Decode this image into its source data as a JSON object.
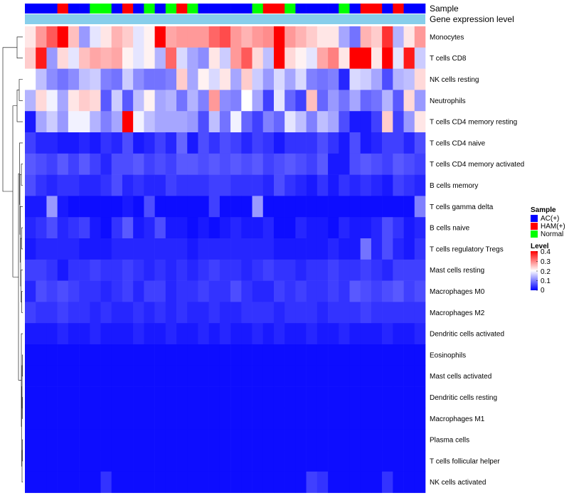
{
  "chart_data": {
    "type": "heatmap",
    "title": "",
    "annotation_tracks": [
      "Sample",
      "Gene expression level"
    ],
    "annotation_track_color": "#87ceeb",
    "n_samples": 37,
    "sample_groups": [
      "AC(+)",
      "AC(+)",
      "AC(+)",
      "HAM(+)",
      "AC(+)",
      "AC(+)",
      "Normal",
      "Normal",
      "AC(+)",
      "HAM(+)",
      "AC(+)",
      "Normal",
      "AC(+)",
      "Normal",
      "HAM(+)",
      "Normal",
      "AC(+)",
      "AC(+)",
      "AC(+)",
      "AC(+)",
      "AC(+)",
      "Normal",
      "HAM(+)",
      "HAM(+)",
      "Normal",
      "AC(+)",
      "AC(+)",
      "AC(+)",
      "AC(+)",
      "Normal",
      "AC(+)",
      "HAM(+)",
      "HAM(+)",
      "AC(+)",
      "HAM(+)",
      "AC(+)",
      "AC(+)"
    ],
    "rows": [
      "Monocytes",
      "T cells CD8",
      "NK cells resting",
      "Neutrophils",
      "T cells CD4 memory resting",
      "T cells CD4 naive",
      "T cells CD4 memory activated",
      "B cells memory",
      "T cells gamma delta",
      "B cells naive",
      "T cells regulatory  Tregs",
      "Mast cells resting",
      "Macrophages M0",
      "Macrophages M2",
      "Dendritic cells activated",
      "Eosinophils",
      "Mast cells activated",
      "Dendritic cells resting",
      "Macrophages M1",
      "Plasma cells",
      "T cells follicular helper",
      "NK cells activated"
    ],
    "values": [
      [
        0.22,
        0.28,
        0.33,
        0.4,
        0.25,
        0.12,
        0.18,
        0.22,
        0.26,
        0.24,
        0.18,
        0.21,
        0.4,
        0.27,
        0.28,
        0.28,
        0.28,
        0.32,
        0.34,
        0.28,
        0.26,
        0.28,
        0.29,
        0.4,
        0.28,
        0.26,
        0.24,
        0.22,
        0.22,
        0.13,
        0.09,
        0.26,
        0.24,
        0.36,
        0.14,
        0.22,
        0.28
      ],
      [
        0.24,
        0.38,
        0.12,
        0.23,
        0.18,
        0.25,
        0.27,
        0.26,
        0.27,
        0.21,
        0.18,
        0.21,
        0.14,
        0.32,
        0.17,
        0.13,
        0.11,
        0.22,
        0.16,
        0.28,
        0.33,
        0.23,
        0.15,
        0.4,
        0.23,
        0.21,
        0.18,
        0.27,
        0.3,
        0.22,
        0.4,
        0.4,
        0.22,
        0.4,
        0.18,
        0.38,
        0.16
      ],
      [
        0.2,
        0.15,
        0.11,
        0.09,
        0.11,
        0.15,
        0.16,
        0.1,
        0.09,
        0.16,
        0.11,
        0.09,
        0.09,
        0.1,
        0.24,
        0.13,
        0.21,
        0.17,
        0.22,
        0.13,
        0.24,
        0.16,
        0.12,
        0.17,
        0.13,
        0.17,
        0.1,
        0.09,
        0.1,
        0.03,
        0.17,
        0.16,
        0.13,
        0.06,
        0.14,
        0.15,
        0.23
      ],
      [
        0.14,
        0.23,
        0.19,
        0.13,
        0.22,
        0.24,
        0.23,
        0.07,
        0.16,
        0.07,
        0.15,
        0.21,
        0.13,
        0.14,
        0.09,
        0.14,
        0.1,
        0.28,
        0.11,
        0.1,
        0.2,
        0.13,
        0.05,
        0.18,
        0.08,
        0.05,
        0.25,
        0.08,
        0.12,
        0.09,
        0.13,
        0.08,
        0.09,
        0.14,
        0.07,
        0.23,
        0.12
      ],
      [
        0.02,
        0.13,
        0.16,
        0.12,
        0.19,
        0.19,
        0.14,
        0.1,
        0.13,
        0.4,
        0.19,
        0.15,
        0.13,
        0.13,
        0.13,
        0.12,
        0.06,
        0.15,
        0.09,
        0.19,
        0.08,
        0.05,
        0.1,
        0.08,
        0.18,
        0.15,
        0.1,
        0.15,
        0.13,
        0.06,
        0.02,
        0.02,
        0.05,
        0.24,
        0.05,
        0.12,
        0.22
      ],
      [
        0.05,
        0.03,
        0.03,
        0.02,
        0.02,
        0.03,
        0.02,
        0.04,
        0.03,
        0.06,
        0.02,
        0.03,
        0.05,
        0.03,
        0.08,
        0.02,
        0.06,
        0.04,
        0.06,
        0.05,
        0.03,
        0.05,
        0.04,
        0.02,
        0.04,
        0.04,
        0.04,
        0.06,
        0.04,
        0.02,
        0.06,
        0.02,
        0.03,
        0.05,
        0.05,
        0.03,
        0.06
      ],
      [
        0.07,
        0.06,
        0.05,
        0.07,
        0.05,
        0.07,
        0.05,
        0.03,
        0.06,
        0.06,
        0.07,
        0.05,
        0.06,
        0.05,
        0.07,
        0.07,
        0.06,
        0.07,
        0.06,
        0.07,
        0.06,
        0.07,
        0.05,
        0.06,
        0.07,
        0.06,
        0.05,
        0.07,
        0.02,
        0.02,
        0.06,
        0.07,
        0.06,
        0.05,
        0.07,
        0.06,
        0.05
      ],
      [
        0.06,
        0.04,
        0.03,
        0.04,
        0.04,
        0.03,
        0.03,
        0.04,
        0.06,
        0.03,
        0.04,
        0.03,
        0.03,
        0.05,
        0.04,
        0.04,
        0.04,
        0.05,
        0.05,
        0.04,
        0.04,
        0.04,
        0.03,
        0.06,
        0.04,
        0.03,
        0.02,
        0.04,
        0.02,
        0.04,
        0.03,
        0.04,
        0.03,
        0.02,
        0.05,
        0.04,
        0.03
      ],
      [
        0.02,
        0.02,
        0.12,
        0.02,
        0.01,
        0.01,
        0.01,
        0.01,
        0.01,
        0.02,
        0.01,
        0.06,
        0.01,
        0.01,
        0.01,
        0.01,
        0.01,
        0.05,
        0.01,
        0.01,
        0.01,
        0.12,
        0.01,
        0.01,
        0.01,
        0.01,
        0.01,
        0.01,
        0.01,
        0.01,
        0.01,
        0.01,
        0.01,
        0.01,
        0.01,
        0.01,
        0.1
      ],
      [
        0.03,
        0.04,
        0.06,
        0.03,
        0.04,
        0.05,
        0.02,
        0.01,
        0.04,
        0.07,
        0.02,
        0.03,
        0.06,
        0.02,
        0.02,
        0.01,
        0.02,
        0.01,
        0.02,
        0.03,
        0.02,
        0.02,
        0.03,
        0.01,
        0.01,
        0.03,
        0.02,
        0.02,
        0.01,
        0.03,
        0.02,
        0.02,
        0.03,
        0.06,
        0.04,
        0.02,
        0.03
      ],
      [
        0.02,
        0.03,
        0.03,
        0.03,
        0.03,
        0.02,
        0.02,
        0.02,
        0.03,
        0.03,
        0.03,
        0.03,
        0.03,
        0.03,
        0.03,
        0.02,
        0.03,
        0.03,
        0.03,
        0.03,
        0.03,
        0.03,
        0.03,
        0.02,
        0.02,
        0.02,
        0.02,
        0.02,
        0.03,
        0.02,
        0.02,
        0.09,
        0.03,
        0.06,
        0.03,
        0.02,
        0.04
      ],
      [
        0.05,
        0.05,
        0.04,
        0.02,
        0.04,
        0.04,
        0.05,
        0.04,
        0.04,
        0.05,
        0.04,
        0.03,
        0.04,
        0.03,
        0.04,
        0.03,
        0.04,
        0.05,
        0.04,
        0.04,
        0.03,
        0.04,
        0.05,
        0.04,
        0.04,
        0.03,
        0.04,
        0.04,
        0.05,
        0.04,
        0.04,
        0.05,
        0.04,
        0.03,
        0.05,
        0.05,
        0.05
      ],
      [
        0.03,
        0.06,
        0.05,
        0.06,
        0.05,
        0.04,
        0.04,
        0.03,
        0.04,
        0.05,
        0.03,
        0.05,
        0.05,
        0.03,
        0.04,
        0.04,
        0.05,
        0.04,
        0.04,
        0.06,
        0.04,
        0.03,
        0.03,
        0.05,
        0.04,
        0.05,
        0.04,
        0.04,
        0.05,
        0.04,
        0.07,
        0.06,
        0.05,
        0.06,
        0.07,
        0.05,
        0.06
      ],
      [
        0.05,
        0.04,
        0.04,
        0.05,
        0.04,
        0.04,
        0.03,
        0.04,
        0.03,
        0.03,
        0.04,
        0.03,
        0.04,
        0.03,
        0.04,
        0.03,
        0.03,
        0.04,
        0.03,
        0.03,
        0.04,
        0.04,
        0.04,
        0.03,
        0.04,
        0.04,
        0.04,
        0.03,
        0.04,
        0.04,
        0.04,
        0.05,
        0.04,
        0.04,
        0.04,
        0.04,
        0.04
      ],
      [
        0.02,
        0.02,
        0.02,
        0.03,
        0.02,
        0.02,
        0.03,
        0.02,
        0.02,
        0.02,
        0.03,
        0.02,
        0.02,
        0.03,
        0.02,
        0.02,
        0.03,
        0.02,
        0.03,
        0.02,
        0.02,
        0.03,
        0.02,
        0.03,
        0.02,
        0.02,
        0.03,
        0.02,
        0.02,
        0.03,
        0.02,
        0.02,
        0.02,
        0.03,
        0.02,
        0.02,
        0.03
      ],
      [
        0.01,
        0.01,
        0.01,
        0.01,
        0.01,
        0.01,
        0.01,
        0.01,
        0.01,
        0.01,
        0.01,
        0.01,
        0.01,
        0.01,
        0.01,
        0.01,
        0.01,
        0.01,
        0.01,
        0.01,
        0.01,
        0.01,
        0.01,
        0.01,
        0.01,
        0.01,
        0.01,
        0.01,
        0.01,
        0.01,
        0.01,
        0.01,
        0.01,
        0.01,
        0.01,
        0.01,
        0.01
      ],
      [
        0.01,
        0.01,
        0.01,
        0.01,
        0.01,
        0.01,
        0.01,
        0.01,
        0.01,
        0.01,
        0.01,
        0.01,
        0.01,
        0.01,
        0.01,
        0.01,
        0.01,
        0.01,
        0.01,
        0.01,
        0.01,
        0.01,
        0.01,
        0.01,
        0.01,
        0.01,
        0.01,
        0.01,
        0.01,
        0.01,
        0.01,
        0.01,
        0.01,
        0.01,
        0.01,
        0.01,
        0.01
      ],
      [
        0.01,
        0.01,
        0.01,
        0.01,
        0.01,
        0.01,
        0.01,
        0.01,
        0.01,
        0.01,
        0.01,
        0.01,
        0.01,
        0.01,
        0.01,
        0.01,
        0.01,
        0.01,
        0.01,
        0.01,
        0.01,
        0.01,
        0.01,
        0.01,
        0.01,
        0.01,
        0.01,
        0.01,
        0.01,
        0.01,
        0.01,
        0.01,
        0.01,
        0.01,
        0.01,
        0.01,
        0.01
      ],
      [
        0.01,
        0.01,
        0.01,
        0.01,
        0.01,
        0.01,
        0.01,
        0.01,
        0.01,
        0.01,
        0.01,
        0.01,
        0.01,
        0.01,
        0.01,
        0.01,
        0.01,
        0.01,
        0.01,
        0.01,
        0.01,
        0.01,
        0.01,
        0.01,
        0.01,
        0.01,
        0.01,
        0.01,
        0.01,
        0.01,
        0.01,
        0.01,
        0.01,
        0.01,
        0.01,
        0.01,
        0.01
      ],
      [
        0.01,
        0.01,
        0.01,
        0.01,
        0.01,
        0.01,
        0.01,
        0.01,
        0.01,
        0.01,
        0.01,
        0.01,
        0.01,
        0.01,
        0.01,
        0.01,
        0.01,
        0.01,
        0.01,
        0.01,
        0.01,
        0.01,
        0.01,
        0.01,
        0.01,
        0.01,
        0.01,
        0.01,
        0.01,
        0.01,
        0.01,
        0.01,
        0.01,
        0.01,
        0.01,
        0.01,
        0.01
      ],
      [
        0.01,
        0.01,
        0.01,
        0.01,
        0.01,
        0.01,
        0.01,
        0.01,
        0.01,
        0.01,
        0.01,
        0.01,
        0.01,
        0.01,
        0.01,
        0.01,
        0.01,
        0.01,
        0.01,
        0.01,
        0.01,
        0.01,
        0.01,
        0.01,
        0.01,
        0.01,
        0.01,
        0.01,
        0.01,
        0.01,
        0.01,
        0.01,
        0.01,
        0.01,
        0.01,
        0.01,
        0.01
      ],
      [
        0.01,
        0.01,
        0.01,
        0.01,
        0.01,
        0.01,
        0.01,
        0.04,
        0.01,
        0.01,
        0.01,
        0.01,
        0.01,
        0.01,
        0.01,
        0.01,
        0.01,
        0.01,
        0.01,
        0.01,
        0.01,
        0.01,
        0.01,
        0.01,
        0.01,
        0.01,
        0.05,
        0.04,
        0.01,
        0.01,
        0.01,
        0.01,
        0.01,
        0.04,
        0.01,
        0.01,
        0.01
      ]
    ],
    "color_scale": {
      "min": 0,
      "mid": 0.2,
      "max": 0.4,
      "low_color": "#0000ff",
      "mid_color": "#ffffff",
      "high_color": "#ff0000"
    },
    "legend": {
      "sample_title": "Sample",
      "sample_entries": [
        {
          "label": "AC(+)",
          "color": "#0000ff"
        },
        {
          "label": "HAM(+)",
          "color": "#ff0000"
        },
        {
          "label": "Normal",
          "color": "#00ff00"
        }
      ],
      "level_title": "Level",
      "level_ticks": [
        "0.4",
        "0.3",
        "0.2",
        "0.1",
        "0"
      ],
      "placement": "right"
    },
    "row_dendrogram": "left"
  }
}
